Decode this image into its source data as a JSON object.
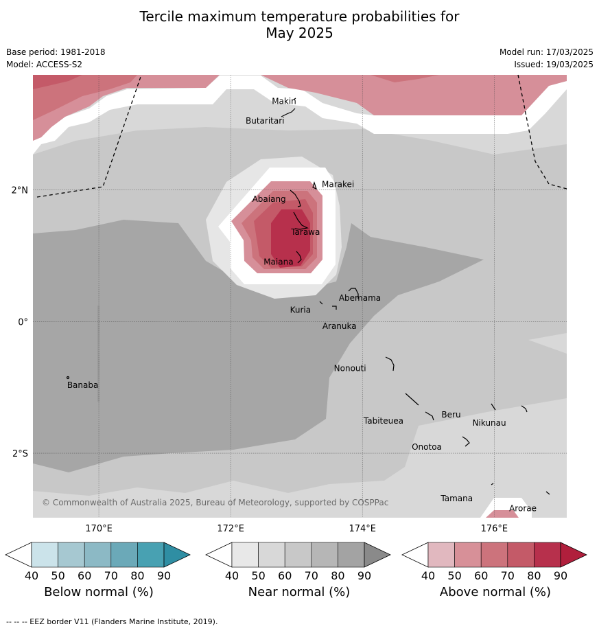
{
  "title_line1": "Tercile maximum temperature probabilities for",
  "title_line2": "May 2025",
  "base_period": "Base period: 1981-2018",
  "model": "Model: ACCESS-S2",
  "model_run": "Model run: 17/03/2025",
  "issued": "Issued: 19/03/2025",
  "copyright": "© Commonwealth of Australia 2025, Bureau of Meteorology, supported by COSPPac",
  "footer": "--  --  -- EEZ border V11 (Flanders Marine Institute, 2019).",
  "axes": {
    "lat_labels": [
      "2°N",
      "0°",
      "2°S"
    ],
    "lon_labels": [
      "170°E",
      "172°E",
      "174°E",
      "176°E"
    ],
    "lon_range": [
      169.0,
      177.1
    ],
    "lat_range": [
      -2.98,
      3.75
    ]
  },
  "places": [
    {
      "name": "Makin",
      "lon": 173.0,
      "lat": 3.37
    },
    {
      "name": "Butaritari",
      "lon": 172.8,
      "lat": 3.07
    },
    {
      "name": "Marakei",
      "lon": 173.3,
      "lat": 2.0
    },
    {
      "name": "Abaiang",
      "lon": 172.9,
      "lat": 1.85
    },
    {
      "name": "Tarawa",
      "lon": 173.0,
      "lat": 1.4
    },
    {
      "name": "Maiana",
      "lon": 173.0,
      "lat": 0.95
    },
    {
      "name": "Abemama",
      "lon": 173.85,
      "lat": 0.4
    },
    {
      "name": "Kuria",
      "lon": 173.4,
      "lat": 0.22
    },
    {
      "name": "Aranuka",
      "lon": 173.6,
      "lat": 0.18
    },
    {
      "name": "Nonouti",
      "lon": 174.4,
      "lat": -0.65
    },
    {
      "name": "Banaba",
      "lon": 169.55,
      "lat": -0.87
    },
    {
      "name": "Tabiteuea",
      "lon": 174.85,
      "lat": -1.35
    },
    {
      "name": "Beru",
      "lon": 175.98,
      "lat": -1.33
    },
    {
      "name": "Nikunau",
      "lon": 176.45,
      "lat": -1.35
    },
    {
      "name": "Onotoa",
      "lon": 175.55,
      "lat": -1.8
    },
    {
      "name": "Tamana",
      "lon": 175.98,
      "lat": -2.5
    },
    {
      "name": "Arorae",
      "lon": 176.82,
      "lat": -2.65
    }
  ],
  "legends": [
    {
      "title": "Below normal (%)",
      "colors": [
        "#ffffff",
        "#cbe3ea",
        "#a6c8d1",
        "#8cb9c5",
        "#6ba9b8",
        "#48a1b2",
        "#2f8ea3"
      ]
    },
    {
      "title": "Near normal (%)",
      "colors": [
        "#ffffff",
        "#e8e8e8",
        "#d8d8d8",
        "#c8c8c8",
        "#b6b6b6",
        "#a3a3a3",
        "#8a8a8a"
      ]
    },
    {
      "title": "Above normal (%)",
      "colors": [
        "#ffffff",
        "#e1b8bf",
        "#d79098",
        "#cc737c",
        "#c45a68",
        "#b7304c",
        "#b01f3c"
      ]
    }
  ],
  "legend_ticks": [
    "40",
    "50",
    "60",
    "70",
    "80",
    "90"
  ]
}
